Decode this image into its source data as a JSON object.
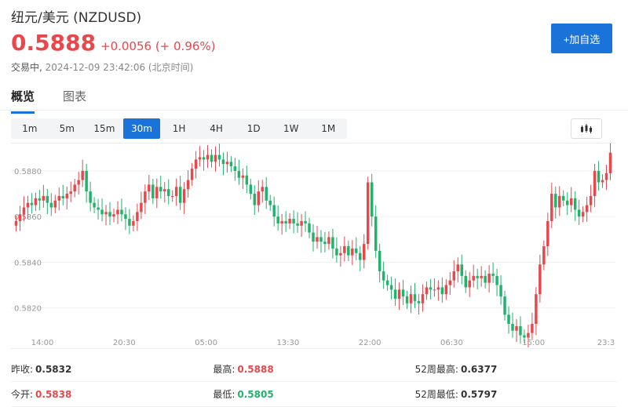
{
  "header": {
    "title": "纽元/美元 (NZDUSD)",
    "price": "0.5888",
    "change": "+0.0056 (+ 0.96%)",
    "status_label": "交易中,",
    "status_time": "2024-12-09 23:42:06 (北京时间)",
    "add_watchlist_label": "+加自选"
  },
  "tabs": [
    {
      "label": "概览",
      "active": true
    },
    {
      "label": "图表",
      "active": false
    }
  ],
  "periods": [
    {
      "label": "1m",
      "active": false
    },
    {
      "label": "5m",
      "active": false
    },
    {
      "label": "15m",
      "active": false
    },
    {
      "label": "30m",
      "active": true
    },
    {
      "label": "1H",
      "active": false
    },
    {
      "label": "4H",
      "active": false
    },
    {
      "label": "1D",
      "active": false
    },
    {
      "label": "1W",
      "active": false
    },
    {
      "label": "1M",
      "active": false
    }
  ],
  "chart_type_icon": "candlestick-icon",
  "colors": {
    "up": "#e8474c",
    "down": "#21b36b",
    "accent": "#1a73d9"
  },
  "chart_data": {
    "type": "candlestick",
    "ylim": [
      0.5802,
      0.5892
    ],
    "ytick_labels": [
      "0.5880",
      "0.5860",
      "0.5840",
      "0.5820",
      "0.5800"
    ],
    "ytick_values": [
      0.588,
      0.586,
      0.584,
      0.582,
      0.58
    ],
    "xtick_labels": [
      "14:00",
      "20:30",
      "05:00",
      "13:30",
      "22:00",
      "06:30",
      "15:00",
      "23:3"
    ],
    "close_series": [
      0.5858,
      0.5861,
      0.5864,
      0.5866,
      0.5865,
      0.5868,
      0.5867,
      0.5869,
      0.5866,
      0.5864,
      0.5867,
      0.5869,
      0.5868,
      0.587,
      0.5871,
      0.5874,
      0.5876,
      0.588,
      0.5871,
      0.5866,
      0.5864,
      0.5863,
      0.5861,
      0.5862,
      0.586,
      0.5861,
      0.5863,
      0.5861,
      0.5859,
      0.5856,
      0.5858,
      0.5862,
      0.5866,
      0.5871,
      0.5874,
      0.5868,
      0.5873,
      0.5871,
      0.5872,
      0.5869,
      0.5869,
      0.5873,
      0.5866,
      0.5872,
      0.5876,
      0.5881,
      0.5885,
      0.5886,
      0.5885,
      0.5887,
      0.5884,
      0.5887,
      0.5885,
      0.5883,
      0.5884,
      0.5882,
      0.588,
      0.5877,
      0.5878,
      0.5874,
      0.587,
      0.5865,
      0.5871,
      0.5873,
      0.5867,
      0.5865,
      0.586,
      0.5857,
      0.5858,
      0.5857,
      0.5859,
      0.5857,
      0.5856,
      0.5858,
      0.5857,
      0.5853,
      0.5849,
      0.5851,
      0.5849,
      0.5848,
      0.5851,
      0.5846,
      0.5843,
      0.5844,
      0.5847,
      0.5843,
      0.5846,
      0.5844,
      0.5841,
      0.5848,
      0.5875,
      0.586,
      0.5845,
      0.5836,
      0.5832,
      0.583,
      0.5828,
      0.5824,
      0.5828,
      0.5825,
      0.5822,
      0.5826,
      0.5823,
      0.5822,
      0.5826,
      0.5829,
      0.5828,
      0.5828,
      0.5829,
      0.5826,
      0.583,
      0.5832,
      0.5836,
      0.5839,
      0.5834,
      0.5829,
      0.5832,
      0.5834,
      0.5833,
      0.5834,
      0.5831,
      0.5835,
      0.5834,
      0.583,
      0.5825,
      0.5817,
      0.5813,
      0.581,
      0.5812,
      0.5808,
      0.5807,
      0.5809,
      0.5813,
      0.5826,
      0.5839,
      0.5847,
      0.5858,
      0.587,
      0.5864,
      0.5869,
      0.5867,
      0.5865,
      0.5868,
      0.5863,
      0.586,
      0.5862,
      0.5865,
      0.5869,
      0.588,
      0.5875,
      0.5876,
      0.5879,
      0.5888
    ]
  },
  "stats": [
    [
      {
        "label": "昨收:",
        "value": "0.5832",
        "color": "neutral"
      },
      {
        "label": "最高:",
        "value": "0.5888",
        "color": "up"
      },
      {
        "label": "52周最高:",
        "value": "0.6377",
        "color": "neutral"
      }
    ],
    [
      {
        "label": "今开:",
        "value": "0.5838",
        "color": "up"
      },
      {
        "label": "最低:",
        "value": "0.5805",
        "color": "down"
      },
      {
        "label": "52周最低:",
        "value": "0.5797",
        "color": "neutral"
      }
    ]
  ]
}
